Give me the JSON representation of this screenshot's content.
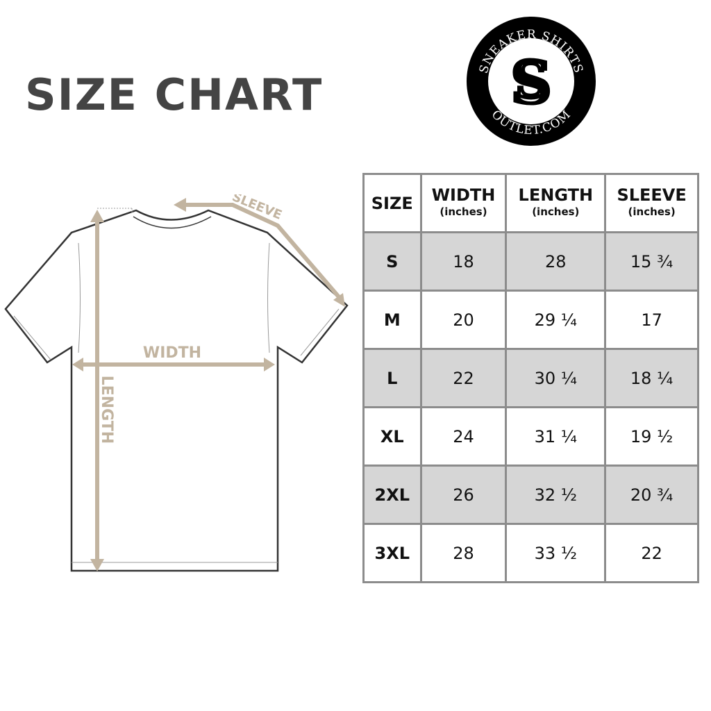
{
  "title": "SIZE CHART",
  "logo": {
    "top_text": "SNEAKER SHIRTS",
    "bottom_text": "OUTLET.COM"
  },
  "diagram": {
    "sleeve_label": "SLEEVE",
    "width_label": "WIDTH",
    "length_label": "LENGTH",
    "accent_color": "#c2b4a0"
  },
  "table": {
    "headers": [
      {
        "label": "SIZE",
        "unit": ""
      },
      {
        "label": "WIDTH",
        "unit": "(inches)"
      },
      {
        "label": "LENGTH",
        "unit": "(inches)"
      },
      {
        "label": "SLEEVE",
        "unit": "(inches)"
      }
    ],
    "rows": [
      [
        "S",
        "18",
        "28",
        "15 ¾"
      ],
      [
        "M",
        "20",
        "29 ¼",
        "17"
      ],
      [
        "L",
        "22",
        "30 ¼",
        "18 ¼"
      ],
      [
        "XL",
        "24",
        "31 ¼",
        "19 ½"
      ],
      [
        "2XL",
        "26",
        "32 ½",
        "20 ¾"
      ],
      [
        "3XL",
        "28",
        "33 ½",
        "22"
      ]
    ]
  }
}
